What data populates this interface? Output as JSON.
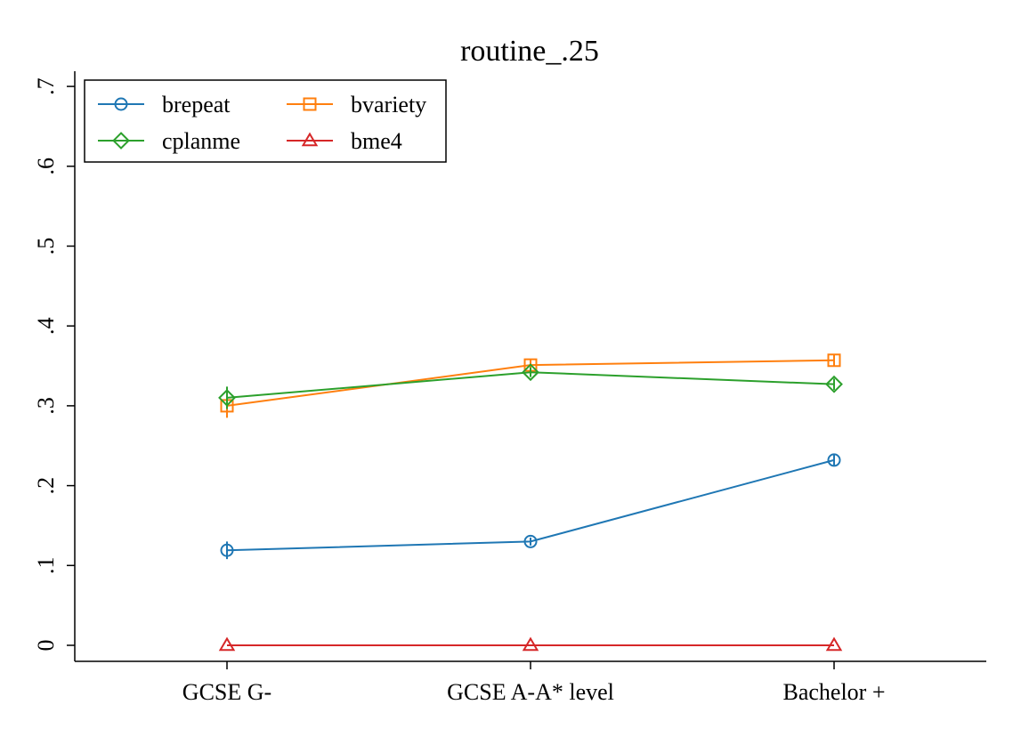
{
  "chart_data": {
    "type": "line",
    "title": "routine_.25",
    "xlabel": "",
    "ylabel": "",
    "categories": [
      "GCSE G-",
      "GCSE A-A* level",
      "Bachelor +"
    ],
    "ylim": [
      0,
      0.7
    ],
    "yticks": [
      {
        "value": 0,
        "label": "0"
      },
      {
        "value": 0.1,
        "label": ".1"
      },
      {
        "value": 0.2,
        "label": ".2"
      },
      {
        "value": 0.3,
        "label": ".3"
      },
      {
        "value": 0.4,
        "label": ".4"
      },
      {
        "value": 0.5,
        "label": ".5"
      },
      {
        "value": 0.6,
        "label": ".6"
      },
      {
        "value": 0.7,
        "label": ".7"
      }
    ],
    "grid": false,
    "legend_position": "top-left",
    "series": [
      {
        "name": "brepeat",
        "color": "#1f77b4",
        "marker": "circle",
        "values": [
          0.119,
          0.13,
          0.232
        ],
        "ci": [
          [
            0.108,
            0.13
          ],
          [
            0.125,
            0.135
          ],
          [
            0.225,
            0.239
          ]
        ]
      },
      {
        "name": "bvariety",
        "color": "#ff7f0e",
        "marker": "square",
        "values": [
          0.3,
          0.351,
          0.357
        ],
        "ci": [
          [
            0.285,
            0.315
          ],
          [
            0.344,
            0.358
          ],
          [
            0.349,
            0.365
          ]
        ]
      },
      {
        "name": "cplanme",
        "color": "#2ca02c",
        "marker": "diamond",
        "values": [
          0.31,
          0.342,
          0.327
        ],
        "ci": [
          [
            0.296,
            0.324
          ],
          [
            0.336,
            0.348
          ],
          [
            0.32,
            0.334
          ]
        ]
      },
      {
        "name": "bme4",
        "color": "#d62728",
        "marker": "triangle",
        "values": [
          0.0,
          0.0,
          0.0
        ],
        "ci": [
          [
            0.0,
            0.0
          ],
          [
            0.0,
            0.0
          ],
          [
            0.0,
            0.0
          ]
        ]
      }
    ]
  }
}
